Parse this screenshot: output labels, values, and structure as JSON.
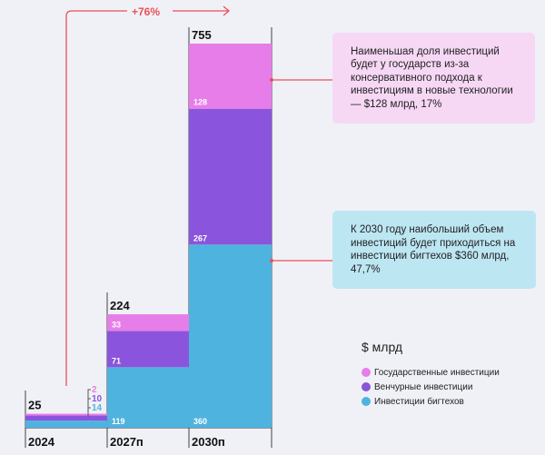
{
  "chart_data": {
    "type": "bar",
    "stacked": true,
    "categories": [
      "2024",
      "2027п",
      "2030п"
    ],
    "totals": [
      "25",
      "224",
      "755"
    ],
    "series": [
      {
        "name": "Инвестиции бигтехов",
        "color": "#4fb3df",
        "values": [
          14,
          119,
          360
        ]
      },
      {
        "name": "Венчурные инвестиции",
        "color": "#8a55dc",
        "values": [
          10,
          71,
          267
        ]
      },
      {
        "name": "Государственные инвестиции",
        "color": "#e77de9",
        "values": [
          2,
          33,
          128
        ]
      }
    ],
    "unit": "$ млрд",
    "growth_label": "+76%",
    "legend_position": "bottom-right"
  },
  "notes": [
    {
      "text": "Наименьшая доля инвестиций будет у государств из-за консервативного подхода к инвестициям в новые технологии — $128 млрд, 17%"
    },
    {
      "text": "К 2030 году наибольший объем инвестиций будет приходиться на инвестиции бигтехов $360 млрд, 47,7%"
    }
  ],
  "colors": {
    "accent": "#e9515a",
    "note_pink": "#f6d8f5",
    "note_blue": "#bde6f3"
  }
}
